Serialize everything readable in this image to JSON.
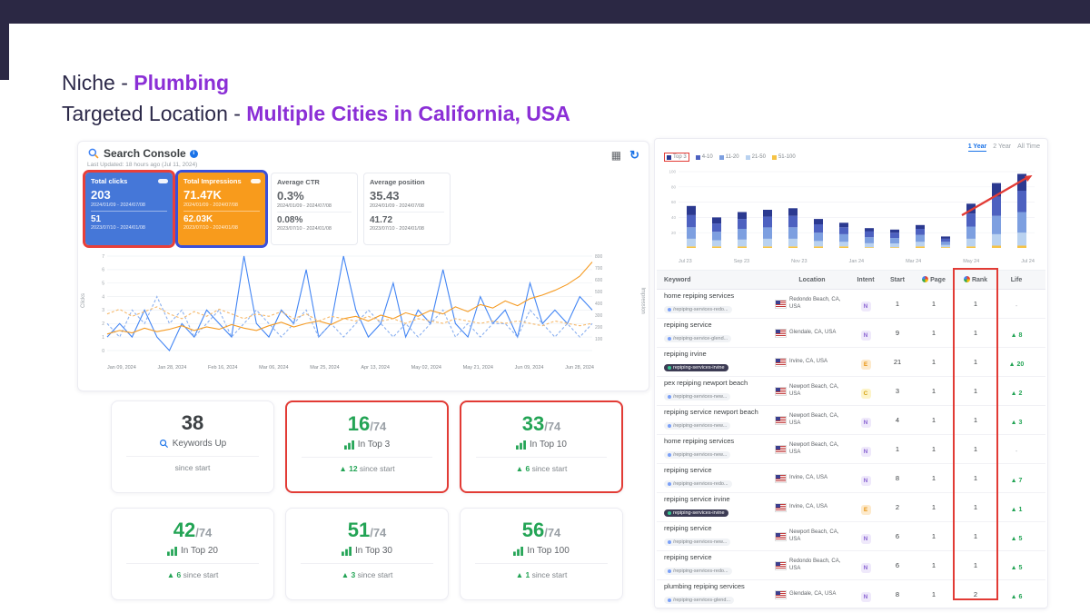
{
  "slide": {
    "line1": {
      "prefix": "Niche - ",
      "highlight": "Plumbing"
    },
    "line2": {
      "prefix": "Targeted Location - ",
      "highlight": "Multiple Cities in California, USA"
    }
  },
  "icons": {
    "calendar": "▦",
    "refresh": "↻",
    "info": "i",
    "up_arrow": "▲"
  },
  "search_console": {
    "title": "Search Console",
    "last_updated": "Last Updated: 18 hours ago (Jul 11, 2024)",
    "metric_cards": [
      {
        "label": "Total clicks",
        "value1": "203",
        "range1": "2024/01/09 - 2024/07/08",
        "value2": "51",
        "range2": "2023/07/10 - 2024/01/08",
        "style": "blue",
        "highlight": "red"
      },
      {
        "label": "Total Impressions",
        "value1": "71.47K",
        "range1": "2024/01/09 - 2024/07/08",
        "value2": "62.03K",
        "range2": "2023/07/10 - 2024/01/08",
        "style": "orange",
        "highlight": "blue"
      },
      {
        "label": "Average CTR",
        "value1": "0.3%",
        "range1": "2024/01/09 - 2024/07/08",
        "value2": "0.08%",
        "range2": "2023/07/10 - 2024/01/08",
        "style": "white",
        "highlight": "none"
      },
      {
        "label": "Average position",
        "value1": "35.43",
        "range1": "2024/01/09 - 2024/07/08",
        "value2": "41.72",
        "range2": "2023/07/10 - 2024/01/08",
        "style": "white",
        "highlight": "none"
      }
    ],
    "chart": {
      "type": "line",
      "x_labels": [
        "Jan 09, 2024",
        "Jan 28, 2024",
        "Feb 16, 2024",
        "Mar 06, 2024",
        "Mar 25, 2024",
        "Apr 13, 2024",
        "May 02, 2024",
        "May 21, 2024",
        "Jun 09, 2024",
        "Jun 28, 2024"
      ],
      "y_left": {
        "label": "Clicks",
        "min": 0,
        "max": 7
      },
      "y_right": {
        "label": "Impression",
        "min": 0,
        "max": 800
      },
      "series": [
        {
          "name": "Clicks (current)",
          "style": "solid",
          "color": "#4285f4",
          "axis": "left",
          "values": [
            1,
            2,
            1,
            3,
            1,
            0,
            2,
            1,
            3,
            2,
            1,
            7,
            2,
            1,
            3,
            2,
            6,
            1,
            2,
            7,
            3,
            1,
            2,
            5,
            1,
            3,
            2,
            6,
            2,
            1,
            4,
            2,
            3,
            1,
            5,
            2,
            3,
            2,
            4,
            3
          ]
        },
        {
          "name": "Clicks (previous)",
          "style": "dashed",
          "color": "#8ab0f0",
          "axis": "left",
          "values": [
            2,
            1,
            3,
            2,
            4,
            2,
            3,
            1,
            2,
            3,
            1,
            2,
            3,
            2,
            1,
            2,
            3,
            1,
            2,
            1,
            2,
            3,
            2,
            1,
            2,
            1,
            2,
            3,
            1,
            2,
            1,
            2,
            2,
            1,
            3,
            2,
            1,
            2,
            1,
            2
          ]
        },
        {
          "name": "Impressions (current)",
          "style": "solid",
          "color": "#f59b23",
          "axis": "right",
          "values": [
            140,
            170,
            150,
            190,
            160,
            180,
            210,
            170,
            200,
            180,
            220,
            190,
            170,
            210,
            240,
            200,
            230,
            250,
            220,
            270,
            290,
            250,
            300,
            270,
            320,
            290,
            340,
            310,
            370,
            330,
            390,
            360,
            420,
            380,
            440,
            470,
            510,
            560,
            630,
            750
          ]
        },
        {
          "name": "Impressions (previous)",
          "style": "dashed",
          "color": "#f6b96b",
          "axis": "right",
          "values": [
            310,
            350,
            290,
            330,
            370,
            310,
            270,
            330,
            290,
            350,
            310,
            270,
            310,
            290,
            330,
            270,
            310,
            250,
            290,
            270,
            250,
            290,
            250,
            270,
            230,
            270,
            250,
            230,
            270,
            250,
            230,
            250,
            230,
            250,
            230,
            210,
            250,
            230,
            210,
            230
          ]
        }
      ]
    },
    "stat_cards": [
      {
        "value": "38",
        "suffix": "",
        "label": "Keywords Up",
        "icon": "magnifier",
        "footer": "since start",
        "delta": "",
        "highlight": false
      },
      {
        "value": "16",
        "suffix": "/74",
        "label": "In Top 3",
        "icon": "bars",
        "footer": "since start",
        "delta": "12",
        "highlight": true
      },
      {
        "value": "33",
        "suffix": "/74",
        "label": "In Top 10",
        "icon": "bars",
        "footer": "since start",
        "delta": "6",
        "highlight": true
      },
      {
        "value": "42",
        "suffix": "/74",
        "label": "In Top 20",
        "icon": "bars",
        "footer": "since start",
        "delta": "6",
        "highlight": false
      },
      {
        "value": "51",
        "suffix": "/74",
        "label": "In Top 30",
        "icon": "bars",
        "footer": "since start",
        "delta": "3",
        "highlight": false
      },
      {
        "value": "56",
        "suffix": "/74",
        "label": "In Top 100",
        "icon": "bars",
        "footer": "since start",
        "delta": "1",
        "highlight": false
      }
    ]
  },
  "rank_tracker": {
    "tabs": [
      {
        "label": "1 Year",
        "active": true
      },
      {
        "label": "2 Year",
        "active": false
      },
      {
        "label": "All Time",
        "active": false
      }
    ],
    "legend": [
      {
        "label": "Top 3",
        "color": "#2b3990",
        "boxed": true
      },
      {
        "label": "4-10",
        "color": "#4d61c0",
        "boxed": false
      },
      {
        "label": "11-20",
        "color": "#7d9fe0",
        "boxed": false
      },
      {
        "label": "21-50",
        "color": "#b9d2f0",
        "boxed": false
      },
      {
        "label": "51-100",
        "color": "#f6c344",
        "boxed": false
      }
    ],
    "bar_chart": {
      "type": "bar",
      "y_max": 100,
      "x_labels": [
        "Jul 23",
        "Sep 23",
        "Nov 23",
        "Jan 24",
        "Mar 24",
        "May 24",
        "Jul 24"
      ],
      "bars": [
        {
          "segments": [
            12,
            16,
            15,
            10,
            2
          ]
        },
        {
          "segments": [
            8,
            11,
            11,
            8,
            2
          ]
        },
        {
          "segments": [
            9,
            13,
            14,
            9,
            2
          ]
        },
        {
          "segments": [
            9,
            14,
            15,
            10,
            2
          ]
        },
        {
          "segments": [
            10,
            15,
            15,
            10,
            2
          ]
        },
        {
          "segments": [
            7,
            11,
            11,
            7,
            2
          ]
        },
        {
          "segments": [
            6,
            9,
            10,
            6,
            2
          ]
        },
        {
          "segments": [
            4,
            8,
            8,
            5,
            1
          ]
        },
        {
          "segments": [
            4,
            7,
            7,
            5,
            1
          ]
        },
        {
          "segments": [
            5,
            8,
            9,
            6,
            2
          ]
        },
        {
          "segments": [
            3,
            4,
            4,
            3,
            1
          ]
        },
        {
          "segments": [
            13,
            17,
            16,
            10,
            2
          ]
        },
        {
          "segments": [
            18,
            25,
            24,
            15,
            3
          ]
        },
        {
          "segments": [
            22,
            28,
            27,
            17,
            3
          ]
        }
      ]
    },
    "table": {
      "columns": [
        {
          "label": "Keyword",
          "gicon": false
        },
        {
          "label": "Location",
          "gicon": false
        },
        {
          "label": "Intent",
          "gicon": false
        },
        {
          "label": "Start",
          "gicon": false
        },
        {
          "label": "Page",
          "gicon": true
        },
        {
          "label": "Rank",
          "gicon": true
        },
        {
          "label": "Life",
          "gicon": false
        }
      ],
      "rows": [
        {
          "keyword": "home repiping services",
          "url": "/repiping-services-redo...",
          "url_style": "light",
          "location": "Redondo Beach, CA, USA",
          "intent": "N",
          "start": "1",
          "page": "1",
          "rank": "1",
          "life": "-"
        },
        {
          "keyword": "repiping service",
          "url": "/repiping-service-glend...",
          "url_style": "light",
          "location": "Glendale, CA, USA",
          "intent": "N",
          "start": "9",
          "page": "1",
          "rank": "1",
          "life": "8"
        },
        {
          "keyword": "repiping irvine",
          "url": "repiping-services-irvine",
          "url_style": "dark",
          "location": "Irvine, CA, USA",
          "intent": "E",
          "start": "21",
          "page": "1",
          "rank": "1",
          "life": "20"
        },
        {
          "keyword": "pex repiping newport beach",
          "url": "/repiping-services-new...",
          "url_style": "light",
          "location": "Newport Beach, CA, USA",
          "intent": "C",
          "start": "3",
          "page": "1",
          "rank": "1",
          "life": "2"
        },
        {
          "keyword": "repiping service newport beach",
          "url": "/repiping-services-new...",
          "url_style": "light",
          "location": "Newport Beach, CA, USA",
          "intent": "N",
          "start": "4",
          "page": "1",
          "rank": "1",
          "life": "3"
        },
        {
          "keyword": "home repiping services",
          "url": "/repiping-services-new...",
          "url_style": "light",
          "location": "Newport Beach, CA, USA",
          "intent": "N",
          "start": "1",
          "page": "1",
          "rank": "1",
          "life": "-"
        },
        {
          "keyword": "repiping service",
          "url": "/repiping-services-redo...",
          "url_style": "light",
          "location": "Irvine, CA, USA",
          "intent": "N",
          "start": "8",
          "page": "1",
          "rank": "1",
          "life": "7"
        },
        {
          "keyword": "repiping service irvine",
          "url": "repiping-services-irvine",
          "url_style": "dark",
          "location": "Irvine, CA, USA",
          "intent": "E",
          "start": "2",
          "page": "1",
          "rank": "1",
          "life": "1"
        },
        {
          "keyword": "repiping service",
          "url": "/repiping-services-new...",
          "url_style": "light",
          "location": "Newport Beach, CA, USA",
          "intent": "N",
          "start": "6",
          "page": "1",
          "rank": "1",
          "life": "5"
        },
        {
          "keyword": "repiping service",
          "url": "/repiping-services-redo...",
          "url_style": "light",
          "location": "Redondo Beach, CA, USA",
          "intent": "N",
          "start": "6",
          "page": "1",
          "rank": "1",
          "life": "5"
        },
        {
          "keyword": "plumbing repiping services",
          "url": "/repiping-services-glend...",
          "url_style": "light",
          "location": "Glendale, CA, USA",
          "intent": "N",
          "start": "8",
          "page": "1",
          "rank": "2",
          "life": "6"
        }
      ]
    }
  }
}
